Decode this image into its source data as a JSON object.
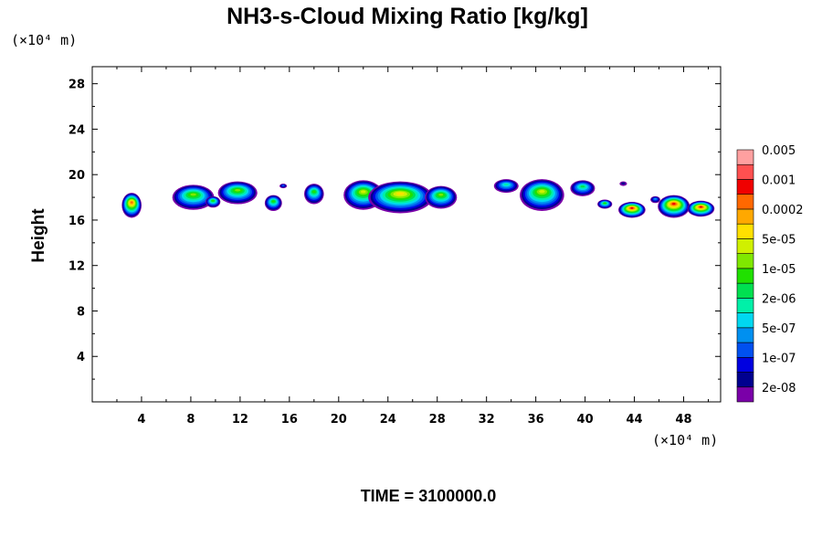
{
  "chart_data": {
    "type": "heatmap",
    "title": "NH3-s-Cloud Mixing Ratio [kg/kg]",
    "xlabel": "",
    "ylabel": "Height",
    "x_unit": "(×10⁴ m)",
    "y_unit": "(×10⁴ m)",
    "xlim": [
      0,
      51
    ],
    "ylim": [
      0,
      29.5
    ],
    "xticks": [
      4,
      8,
      12,
      16,
      20,
      24,
      28,
      32,
      36,
      40,
      44,
      48
    ],
    "yticks": [
      4,
      8,
      12,
      16,
      20,
      24,
      28
    ],
    "grid": false,
    "colorbar": {
      "position": "right",
      "colors": [
        "#7a00a8",
        "#00008f",
        "#0000e0",
        "#0050f0",
        "#0090f0",
        "#00d8f0",
        "#00f0a8",
        "#00e050",
        "#20e000",
        "#80e800",
        "#d0f000",
        "#ffe000",
        "#ffa800",
        "#ff6800",
        "#f00000",
        "#ff5050",
        "#ffa0a0"
      ],
      "labels": [
        "2e-08",
        "1e-07",
        "5e-07",
        "2e-06",
        "1e-05",
        "5e-05",
        "0.0002",
        "0.001",
        "0.005"
      ]
    },
    "cells": [
      {
        "x": 3.2,
        "y": 17.3,
        "rx": 0.8,
        "ry": 1.1,
        "max": 13
      },
      {
        "x": 8.2,
        "y": 18.0,
        "rx": 1.7,
        "ry": 1.1,
        "max": 9
      },
      {
        "x": 9.8,
        "y": 17.6,
        "rx": 0.6,
        "ry": 0.5,
        "max": 8
      },
      {
        "x": 11.8,
        "y": 18.4,
        "rx": 1.6,
        "ry": 1.0,
        "max": 9
      },
      {
        "x": 14.7,
        "y": 17.5,
        "rx": 0.7,
        "ry": 0.7,
        "max": 8
      },
      {
        "x": 15.5,
        "y": 19.0,
        "rx": 0.3,
        "ry": 0.2,
        "max": 3
      },
      {
        "x": 18.0,
        "y": 18.3,
        "rx": 0.8,
        "ry": 0.9,
        "max": 8
      },
      {
        "x": 22.0,
        "y": 18.2,
        "rx": 1.6,
        "ry": 1.3,
        "max": 10
      },
      {
        "x": 25.0,
        "y": 18.0,
        "rx": 2.6,
        "ry": 1.4,
        "max": 11
      },
      {
        "x": 28.3,
        "y": 18.0,
        "rx": 1.3,
        "ry": 1.0,
        "max": 9
      },
      {
        "x": 33.6,
        "y": 19.0,
        "rx": 1.0,
        "ry": 0.6,
        "max": 6
      },
      {
        "x": 36.5,
        "y": 18.2,
        "rx": 1.8,
        "ry": 1.4,
        "max": 10
      },
      {
        "x": 39.8,
        "y": 18.8,
        "rx": 1.0,
        "ry": 0.7,
        "max": 7
      },
      {
        "x": 41.6,
        "y": 17.4,
        "rx": 0.6,
        "ry": 0.4,
        "max": 8
      },
      {
        "x": 43.1,
        "y": 19.2,
        "rx": 0.3,
        "ry": 0.2,
        "max": 1
      },
      {
        "x": 43.8,
        "y": 16.9,
        "rx": 1.1,
        "ry": 0.7,
        "max": 14
      },
      {
        "x": 45.7,
        "y": 17.8,
        "rx": 0.4,
        "ry": 0.3,
        "max": 4
      },
      {
        "x": 47.2,
        "y": 17.2,
        "rx": 1.3,
        "ry": 1.0,
        "max": 14
      },
      {
        "x": 49.4,
        "y": 17.0,
        "rx": 1.1,
        "ry": 0.7,
        "max": 14
      }
    ]
  },
  "footer": {
    "time_label": "TIME = 3100000.0"
  }
}
